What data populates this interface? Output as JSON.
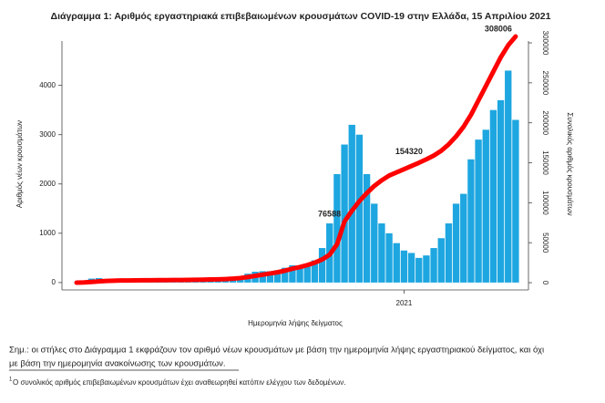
{
  "chart_data": {
    "type": "bar",
    "title": "Διάγραμμα 1: Αριθμός εργαστηριακά επιβεβαιωμένων κρουσμάτων COVID-19 στην Ελλάδα, 15 Απριλίου 2021",
    "y_label": "Αριθμός νέων κρουσμάτων",
    "y2_label": "Συνολικός αριθμός κρουσμάτων",
    "x_label": "Ημερομηνία λήψης δείγματος",
    "categories": [
      null,
      null,
      null,
      null,
      null,
      null,
      null,
      null,
      null,
      null,
      null,
      null,
      null,
      null,
      null,
      null,
      null,
      null,
      null,
      null,
      null,
      null,
      null,
      null,
      null,
      null,
      null,
      null,
      null,
      null,
      null,
      null,
      null,
      null,
      null,
      null,
      null,
      null,
      null,
      null,
      null,
      null,
      null,
      null,
      "2021",
      null,
      null,
      null,
      null,
      null,
      null,
      null,
      null,
      null,
      null,
      null,
      null,
      null,
      null,
      null
    ],
    "series": [
      {
        "type": "bar",
        "color": "#1ea6e0",
        "values": [
          5,
          40,
          80,
          90,
          70,
          60,
          30,
          20,
          15,
          10,
          10,
          10,
          15,
          15,
          10,
          15,
          20,
          25,
          30,
          35,
          40,
          60,
          120,
          180,
          220,
          230,
          230,
          250,
          300,
          350,
          330,
          380,
          450,
          700,
          1200,
          2200,
          2800,
          3200,
          3000,
          2200,
          1600,
          1200,
          1000,
          800,
          650,
          600,
          500,
          550,
          700,
          900,
          1200,
          1600,
          1800,
          2500,
          2900,
          3100,
          3500,
          3700,
          4300,
          3300
        ]
      },
      {
        "type": "line",
        "axis": "y2",
        "color": "#ff0000",
        "values": [
          30,
          300,
          900,
          1600,
          2100,
          2500,
          2700,
          2800,
          2900,
          3000,
          3050,
          3100,
          3200,
          3300,
          3350,
          3450,
          3600,
          3800,
          4000,
          4200,
          4500,
          5000,
          5800,
          7000,
          8500,
          10000,
          11500,
          13000,
          15000,
          17500,
          19500,
          22000,
          25000,
          29000,
          35000,
          48000,
          76588,
          90000,
          102000,
          112000,
          121000,
          128000,
          134000,
          138000,
          142000,
          146000,
          150000,
          154320,
          159000,
          165000,
          173000,
          183000,
          195000,
          210000,
          228000,
          246000,
          264000,
          282000,
          297000,
          308006
        ],
        "value_labels": [
          null,
          null,
          null,
          null,
          null,
          null,
          null,
          null,
          null,
          null,
          null,
          null,
          null,
          null,
          null,
          null,
          null,
          null,
          null,
          null,
          null,
          null,
          null,
          null,
          null,
          null,
          null,
          null,
          null,
          null,
          null,
          null,
          null,
          null,
          null,
          null,
          "76588",
          null,
          null,
          null,
          null,
          null,
          null,
          null,
          null,
          null,
          null,
          "154320",
          null,
          null,
          null,
          null,
          null,
          null,
          null,
          null,
          null,
          null,
          null,
          "308006"
        ]
      }
    ],
    "ylim": [
      -150,
      4900
    ],
    "yticks": [
      0,
      1000,
      2000,
      3000,
      4000
    ],
    "y2lim": [
      -9100,
      302300
    ],
    "y2ticks": [
      0,
      50000,
      100000,
      150000,
      200000,
      250000,
      300000
    ],
    "note_lines": [
      "Σημ.: οι στήλες στο Διάγραμμα 1 εκφράζουν τον αριθμό νέων κρουσμάτων με βάση την ημερομηνία λήψης εργαστηριακού δείγματος, και όχι",
      "με βάση την ημερομηνία ανακοίνωσης των κρουσμάτων."
    ],
    "footnote_marker": "1",
    "footnote": "Ο συνολικός αριθμός επιβεβαιωμένων κρουσμάτων έχει αναθεωρηθεί κατόπιν ελέγχου των δεδομένων."
  }
}
